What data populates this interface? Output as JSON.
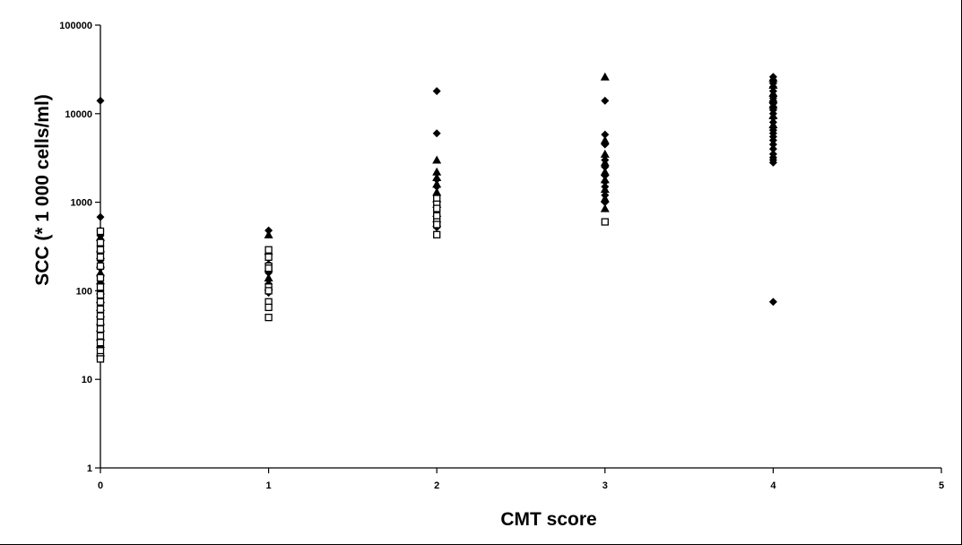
{
  "chart_data": {
    "type": "scatter",
    "xlabel": "CMT score",
    "ylabel": "SCC (* 1 000 cells/ml)",
    "x_ticks": [
      "0",
      "1",
      "2",
      "3",
      "4",
      "5"
    ],
    "y_ticks": [
      "1",
      "10",
      "100",
      "1000",
      "10000",
      "100000"
    ],
    "xlim": [
      0,
      5
    ],
    "ylim": [
      1,
      100000
    ],
    "y_scale": "log",
    "grid": false,
    "legend": "none",
    "series": [
      {
        "marker": "diamond",
        "points": [
          [
            0,
            14000
          ],
          [
            0,
            680
          ],
          [
            0,
            480
          ],
          [
            0,
            420
          ],
          [
            0,
            380
          ],
          [
            0,
            320
          ],
          [
            0,
            270
          ],
          [
            0,
            220
          ],
          [
            0,
            180
          ],
          [
            0,
            150
          ],
          [
            0,
            120
          ],
          [
            0,
            100
          ],
          [
            0,
            85
          ],
          [
            0,
            72
          ],
          [
            0,
            60
          ],
          [
            0,
            50
          ],
          [
            0,
            42
          ],
          [
            0,
            35
          ],
          [
            0,
            28
          ],
          [
            0,
            22
          ],
          [
            1,
            480
          ],
          [
            1,
            260
          ],
          [
            1,
            200
          ],
          [
            1,
            160
          ],
          [
            1,
            120
          ],
          [
            1,
            95
          ],
          [
            2,
            18000
          ],
          [
            2,
            6000
          ],
          [
            2,
            1800
          ],
          [
            2,
            1500
          ],
          [
            2,
            1200
          ],
          [
            2,
            1000
          ],
          [
            2,
            900
          ],
          [
            2,
            800
          ],
          [
            2,
            700
          ],
          [
            2,
            600
          ],
          [
            2,
            520
          ],
          [
            3,
            14000
          ],
          [
            3,
            5800
          ],
          [
            3,
            4500
          ],
          [
            3,
            3000
          ],
          [
            3,
            2500
          ],
          [
            3,
            2000
          ],
          [
            3,
            1700
          ],
          [
            3,
            1500
          ],
          [
            3,
            1200
          ],
          [
            3,
            1000
          ],
          [
            4,
            26000
          ],
          [
            4,
            24000
          ],
          [
            4,
            22000
          ],
          [
            4,
            20000
          ],
          [
            4,
            18000
          ],
          [
            4,
            16000
          ],
          [
            4,
            15000
          ],
          [
            4,
            14000
          ],
          [
            4,
            13000
          ],
          [
            4,
            12000
          ],
          [
            4,
            11000
          ],
          [
            4,
            10000
          ],
          [
            4,
            9000
          ],
          [
            4,
            8000
          ],
          [
            4,
            7000
          ],
          [
            4,
            6500
          ],
          [
            4,
            6000
          ],
          [
            4,
            5500
          ],
          [
            4,
            5000
          ],
          [
            4,
            4500
          ],
          [
            4,
            4000
          ],
          [
            4,
            3500
          ],
          [
            4,
            3200
          ],
          [
            4,
            3000
          ],
          [
            4,
            2800
          ],
          [
            4,
            75
          ]
        ]
      },
      {
        "marker": "triangle",
        "points": [
          [
            0,
            400
          ],
          [
            0,
            300
          ],
          [
            0,
            250
          ],
          [
            0,
            200
          ],
          [
            0,
            160
          ],
          [
            0,
            130
          ],
          [
            0,
            100
          ],
          [
            0,
            80
          ],
          [
            0,
            65
          ],
          [
            0,
            55
          ],
          [
            0,
            45
          ],
          [
            0,
            38
          ],
          [
            0,
            30
          ],
          [
            0,
            25
          ],
          [
            0,
            20
          ],
          [
            1,
            430
          ],
          [
            1,
            280
          ],
          [
            1,
            180
          ],
          [
            1,
            140
          ],
          [
            1,
            110
          ],
          [
            2,
            3000
          ],
          [
            2,
            2200
          ],
          [
            2,
            1900
          ],
          [
            2,
            1600
          ],
          [
            2,
            1300
          ],
          [
            2,
            1100
          ],
          [
            2,
            950
          ],
          [
            2,
            750
          ],
          [
            2,
            650
          ],
          [
            2,
            580
          ],
          [
            3,
            26000
          ],
          [
            3,
            5000
          ],
          [
            3,
            3500
          ],
          [
            3,
            2800
          ],
          [
            3,
            2200
          ],
          [
            3,
            1800
          ],
          [
            3,
            1400
          ],
          [
            3,
            1100
          ],
          [
            3,
            850
          ],
          [
            4,
            25000
          ],
          [
            4,
            21000
          ],
          [
            4,
            17000
          ],
          [
            4,
            14500
          ],
          [
            4,
            12500
          ],
          [
            4,
            9500
          ],
          [
            4,
            7500
          ]
        ]
      },
      {
        "marker": "square",
        "points": [
          [
            0,
            470
          ],
          [
            0,
            350
          ],
          [
            0,
            290
          ],
          [
            0,
            240
          ],
          [
            0,
            190
          ],
          [
            0,
            140
          ],
          [
            0,
            110
          ],
          [
            0,
            90
          ],
          [
            0,
            75
          ],
          [
            0,
            62
          ],
          [
            0,
            52
          ],
          [
            0,
            44
          ],
          [
            0,
            37
          ],
          [
            0,
            31
          ],
          [
            0,
            26
          ],
          [
            0,
            21
          ],
          [
            0,
            18
          ],
          [
            0,
            17
          ],
          [
            1,
            290
          ],
          [
            1,
            240
          ],
          [
            1,
            190
          ],
          [
            1,
            180
          ],
          [
            1,
            110
          ],
          [
            1,
            100
          ],
          [
            1,
            75
          ],
          [
            1,
            65
          ],
          [
            1,
            50
          ],
          [
            2,
            1100
          ],
          [
            2,
            950
          ],
          [
            2,
            850
          ],
          [
            2,
            700
          ],
          [
            2,
            600
          ],
          [
            2,
            560
          ],
          [
            2,
            430
          ],
          [
            3,
            600
          ]
        ]
      }
    ]
  }
}
